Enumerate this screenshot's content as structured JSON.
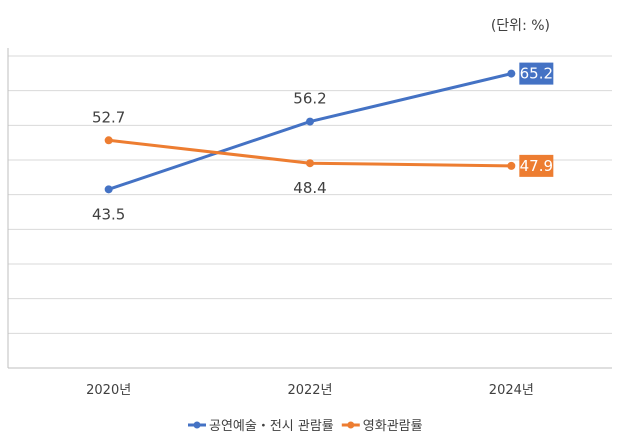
{
  "chart_data": {
    "type": "line",
    "unit_label": "(단위: %)",
    "categories": [
      "2020년",
      "2022년",
      "2024년"
    ],
    "ylim": [
      10,
      70
    ],
    "grid": true,
    "legend_position": "bottom",
    "series": [
      {
        "name": "공연예술・전시 관람률",
        "values": [
          43.5,
          56.2,
          65.2
        ],
        "color": "#4472C4"
      },
      {
        "name": "영화관람률",
        "values": [
          52.7,
          48.4,
          47.9
        ],
        "color": "#ED7D31"
      }
    ]
  }
}
